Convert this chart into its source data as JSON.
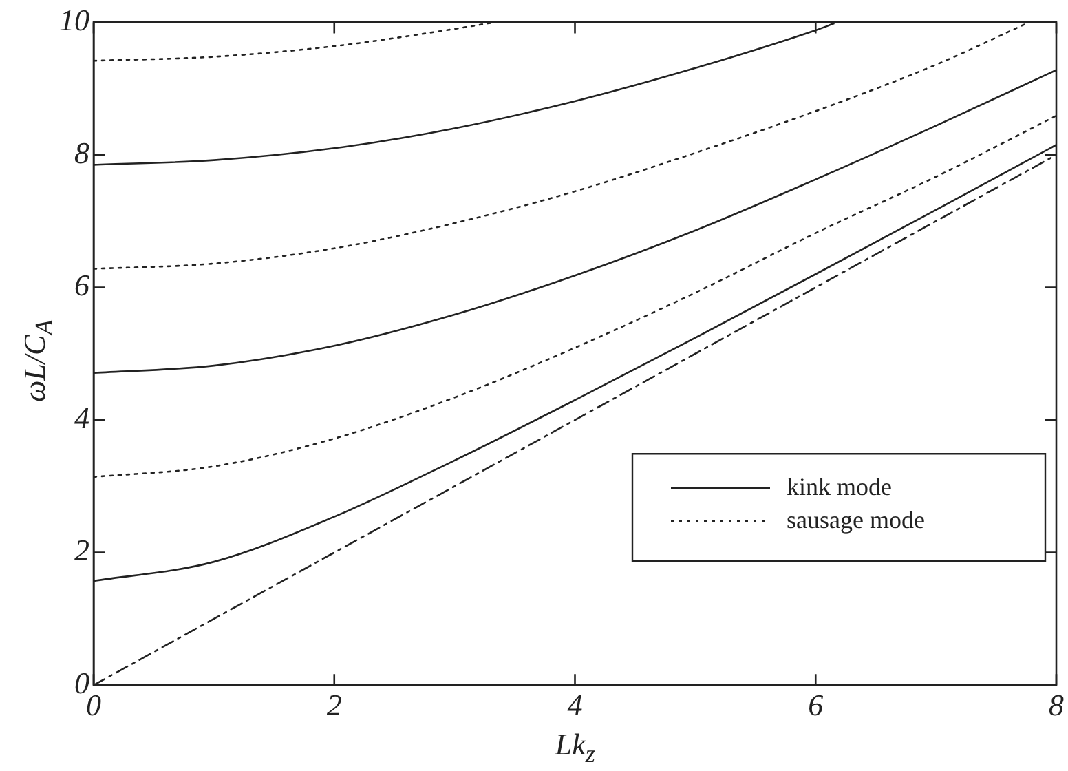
{
  "chart_data": {
    "type": "line",
    "xlabel": "Lk$_{z}$",
    "ylabel": "ωL/C$_{A}$",
    "xlim": [
      0,
      8
    ],
    "ylim": [
      0,
      10
    ],
    "xticks": [
      0,
      2,
      4,
      6,
      8
    ],
    "yticks": [
      0,
      2,
      4,
      6,
      8,
      10
    ],
    "grid": false,
    "legend": "bottom right",
    "marker": "none",
    "series": [
      {
        "name": "kink mode",
        "color": "#222222",
        "line_style": "solid",
        "x": [
          0,
          1,
          2,
          3,
          4,
          5,
          6,
          7,
          8
        ],
        "values": [
          1.57,
          1.86,
          2.54,
          3.39,
          4.3,
          5.24,
          6.2,
          7.17,
          8.15
        ]
      },
      {
        "name": "sausage mode",
        "color": "#222222",
        "line_style": "dotted",
        "x": [
          0,
          1,
          2,
          3,
          4,
          5,
          6,
          7,
          8
        ],
        "values": [
          3.14,
          3.3,
          3.72,
          4.34,
          5.09,
          5.92,
          6.82,
          7.67,
          8.59
        ]
      },
      {
        "color": "#222222",
        "line_style": "solid",
        "x": [
          0,
          1,
          2,
          3,
          4,
          5,
          6,
          7,
          8
        ],
        "values": [
          4.71,
          4.82,
          5.12,
          5.59,
          6.18,
          6.86,
          7.63,
          8.44,
          9.28
        ]
      },
      {
        "color": "#222222",
        "line_style": "dotted",
        "x": [
          0,
          1,
          2,
          3,
          4,
          5,
          6,
          7,
          7.75
        ],
        "values": [
          6.28,
          6.36,
          6.59,
          6.97,
          7.45,
          8.03,
          8.66,
          9.36,
          9.98
        ]
      },
      {
        "color": "#222222",
        "line_style": "solid",
        "x": [
          0,
          1,
          2,
          3,
          4,
          5,
          6,
          6.15
        ],
        "values": [
          7.85,
          7.92,
          8.1,
          8.4,
          8.81,
          9.31,
          9.88,
          9.98
        ]
      },
      {
        "color": "#222222",
        "line_style": "dotted",
        "x": [
          0,
          1,
          2,
          3,
          3.3
        ],
        "values": [
          9.42,
          9.48,
          9.64,
          9.9,
          9.99
        ]
      },
      {
        "color": "#222222",
        "line_style": "dashdot",
        "x": [
          0,
          8
        ],
        "values": [
          0,
          8
        ]
      }
    ]
  }
}
